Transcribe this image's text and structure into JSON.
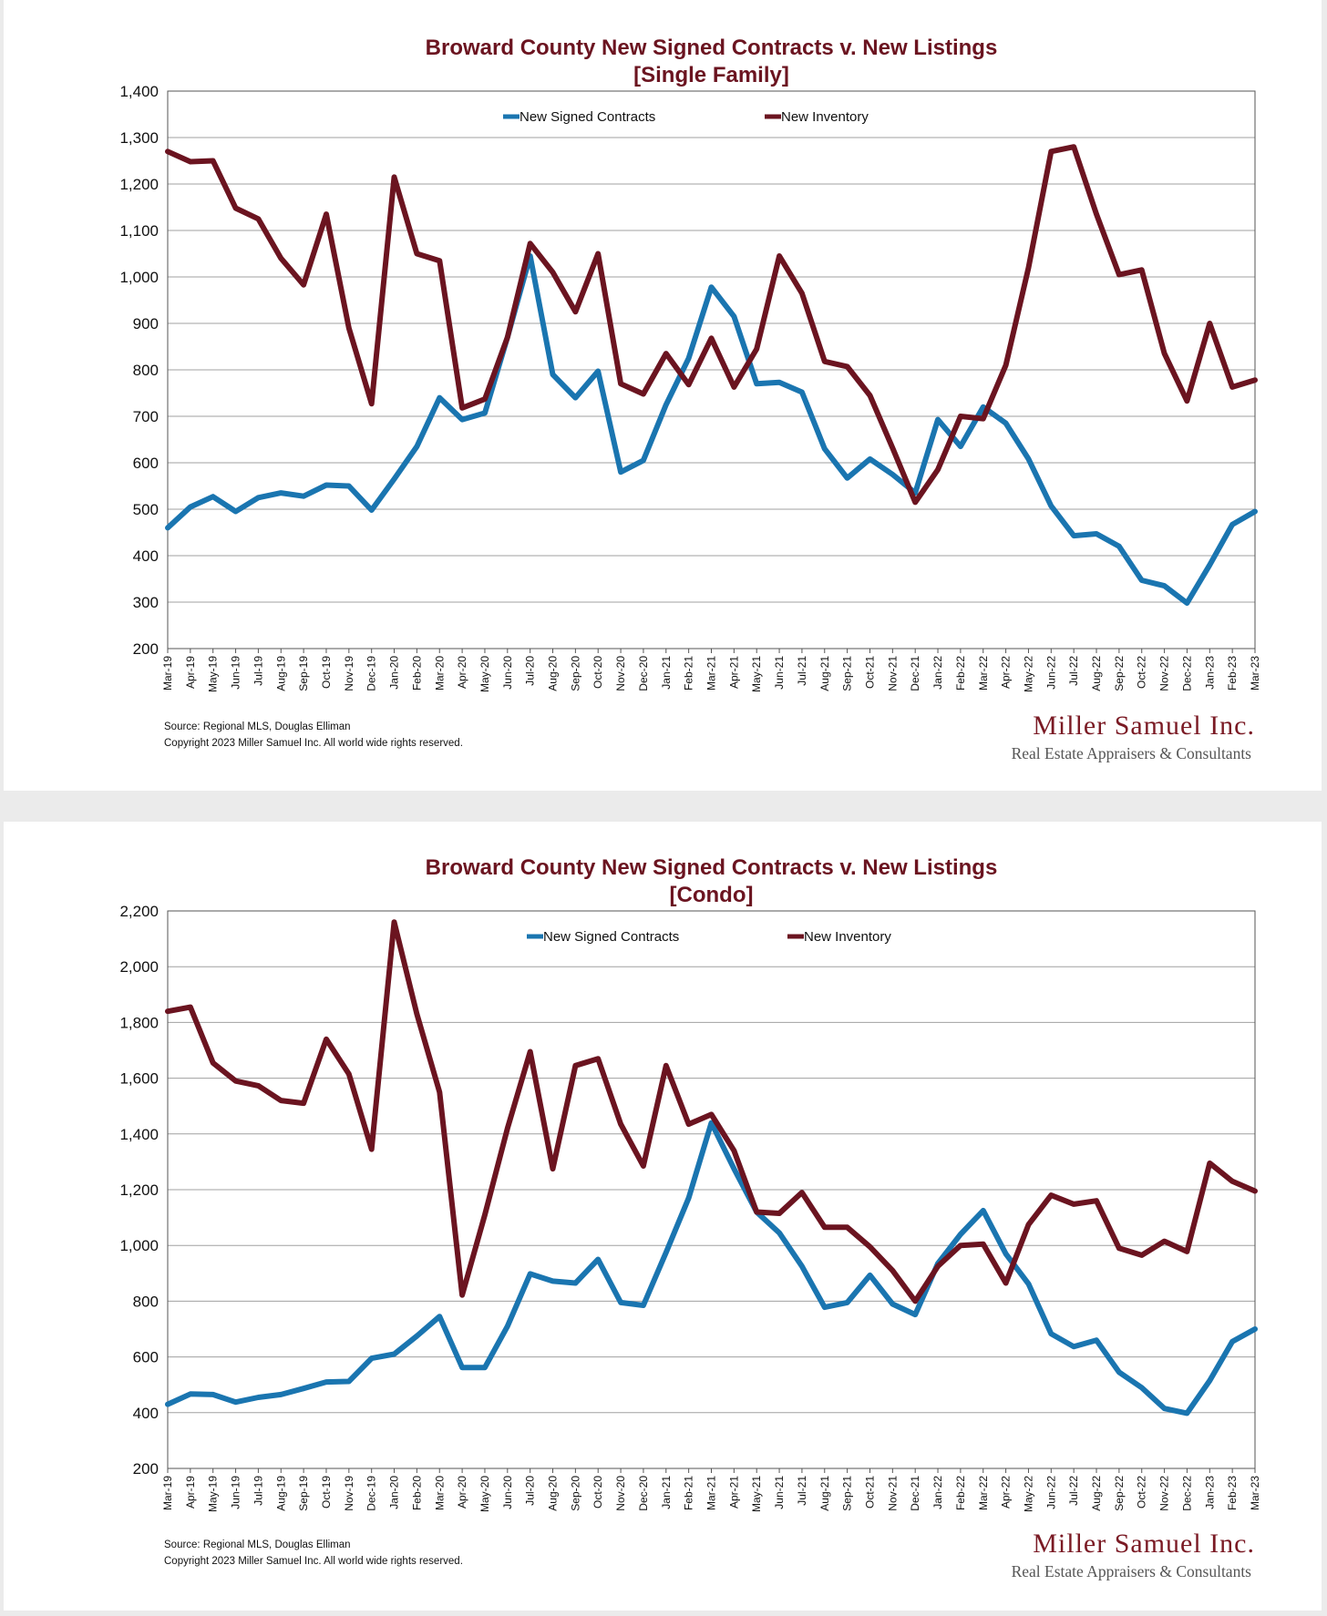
{
  "colors": {
    "contracts": "#1a75b0",
    "inventory": "#6b1420",
    "title": "#6b1420"
  },
  "footer": {
    "source": "Source: Regional MLS, Douglas Elliman",
    "copyright": "Copyright 2023 Miller Samuel Inc.  All world wide rights reserved.",
    "logo_name": "Miller Samuel Inc.",
    "logo_tagline": "Real Estate Appraisers & Consultants"
  },
  "chart_data": [
    {
      "type": "line",
      "title": "Broward County New Signed Contracts v. New Listings",
      "subtitle": "[Single Family]",
      "ylim": [
        200,
        1400
      ],
      "yticks": [
        200,
        300,
        400,
        500,
        600,
        700,
        800,
        900,
        1000,
        1100,
        1200,
        1300,
        1400
      ],
      "ytick_labels": [
        "200",
        "300",
        "400",
        "500",
        "600",
        "700",
        "800",
        "900",
        "1,000",
        "1,100",
        "1,200",
        "1,300",
        "1,400"
      ],
      "grid": true,
      "legend": "top-center",
      "x": [
        "Mar-19",
        "Apr-19",
        "May-19",
        "Jun-19",
        "Jul-19",
        "Aug-19",
        "Sep-19",
        "Oct-19",
        "Nov-19",
        "Dec-19",
        "Jan-20",
        "Feb-20",
        "Mar-20",
        "Apr-20",
        "May-20",
        "Jun-20",
        "Jul-20",
        "Aug-20",
        "Sep-20",
        "Oct-20",
        "Nov-20",
        "Dec-20",
        "Jan-21",
        "Feb-21",
        "Mar-21",
        "Apr-21",
        "May-21",
        "Jun-21",
        "Jul-21",
        "Aug-21",
        "Sep-21",
        "Oct-21",
        "Nov-21",
        "Dec-21",
        "Jan-22",
        "Feb-22",
        "Mar-22",
        "Apr-22",
        "May-22",
        "Jun-22",
        "Jul-22",
        "Aug-22",
        "Sep-22",
        "Oct-22",
        "Nov-22",
        "Dec-22",
        "Jan-23",
        "Feb-23",
        "Mar-23"
      ],
      "series": [
        {
          "name": "New Signed Contracts",
          "values": [
            460,
            505,
            527,
            495,
            525,
            535,
            528,
            552,
            550,
            498,
            565,
            635,
            740,
            693,
            707,
            870,
            1045,
            790,
            740,
            797,
            580,
            605,
            725,
            825,
            978,
            915,
            770,
            773,
            752,
            630,
            567,
            608,
            575,
            535,
            693,
            635,
            720,
            685,
            608,
            507,
            443,
            447,
            420,
            347,
            335,
            298,
            380,
            467,
            495
          ]
        },
        {
          "name": "New Inventory",
          "values": [
            1270,
            1248,
            1250,
            1148,
            1125,
            1040,
            983,
            1135,
            890,
            727,
            1215,
            1050,
            1035,
            718,
            737,
            870,
            1072,
            1010,
            925,
            1050,
            770,
            748,
            835,
            768,
            868,
            763,
            845,
            1045,
            965,
            818,
            807,
            745,
            632,
            515,
            585,
            700,
            695,
            810,
            1020,
            1270,
            1280,
            1135,
            1005,
            1015,
            835,
            733,
            900,
            763,
            778
          ]
        }
      ]
    },
    {
      "type": "line",
      "title": "Broward County New Signed Contracts v. New Listings",
      "subtitle": "[Condo]",
      "ylim": [
        200,
        2200
      ],
      "yticks": [
        200,
        400,
        600,
        800,
        1000,
        1200,
        1400,
        1600,
        1800,
        2000,
        2200
      ],
      "ytick_labels": [
        "200",
        "400",
        "600",
        "800",
        "1,000",
        "1,200",
        "1,400",
        "1,600",
        "1,800",
        "2,000",
        "2,200"
      ],
      "grid": true,
      "legend": "top-center",
      "x": [
        "Mar-19",
        "Apr-19",
        "May-19",
        "Jun-19",
        "Jul-19",
        "Aug-19",
        "Sep-19",
        "Oct-19",
        "Nov-19",
        "Dec-19",
        "Jan-20",
        "Feb-20",
        "Mar-20",
        "Apr-20",
        "May-20",
        "Jun-20",
        "Jul-20",
        "Aug-20",
        "Sep-20",
        "Oct-20",
        "Nov-20",
        "Dec-20",
        "Jan-21",
        "Feb-21",
        "Mar-21",
        "Apr-21",
        "May-21",
        "Jun-21",
        "Jul-21",
        "Aug-21",
        "Sep-21",
        "Oct-21",
        "Nov-21",
        "Dec-21",
        "Jan-22",
        "Feb-22",
        "Mar-22",
        "Apr-22",
        "May-22",
        "Jun-22",
        "Jul-22",
        "Aug-22",
        "Sep-22",
        "Oct-22",
        "Nov-22",
        "Dec-22",
        "Jan-23",
        "Feb-23",
        "Mar-23"
      ],
      "series": [
        {
          "name": "New Signed Contracts",
          "values": [
            430,
            467,
            465,
            438,
            455,
            465,
            487,
            510,
            512,
            595,
            610,
            675,
            745,
            562,
            562,
            710,
            898,
            872,
            865,
            950,
            795,
            785,
            975,
            1170,
            1440,
            1275,
            1120,
            1045,
            925,
            778,
            795,
            893,
            790,
            752,
            935,
            1040,
            1125,
            970,
            862,
            683,
            637,
            660,
            545,
            490,
            415,
            398,
            515,
            655,
            700
          ]
        },
        {
          "name": "New Inventory",
          "values": [
            1840,
            1855,
            1655,
            1590,
            1573,
            1520,
            1510,
            1740,
            1615,
            1345,
            2160,
            1830,
            1550,
            822,
            1110,
            1420,
            1695,
            1275,
            1645,
            1670,
            1435,
            1285,
            1645,
            1435,
            1470,
            1340,
            1120,
            1115,
            1190,
            1065,
            1065,
            995,
            910,
            800,
            925,
            1000,
            1005,
            865,
            1075,
            1180,
            1148,
            1160,
            990,
            965,
            1015,
            978,
            1295,
            1230,
            1195
          ]
        }
      ]
    }
  ]
}
